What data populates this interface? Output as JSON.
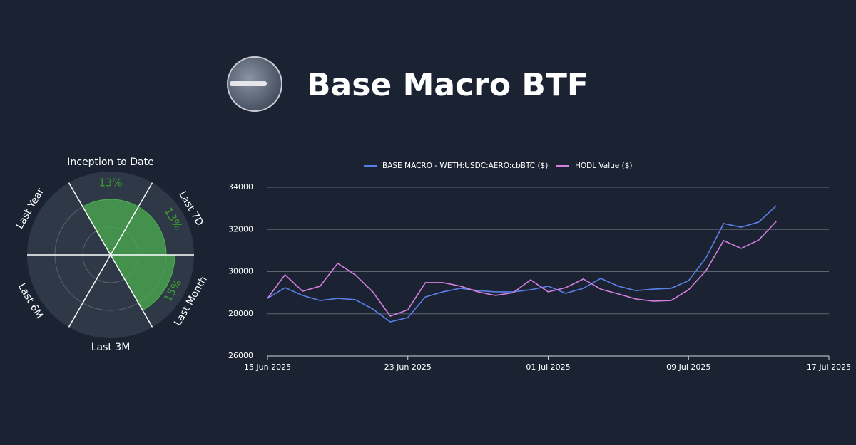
{
  "header": {
    "title": "Base Macro BTF"
  },
  "chart_data": [
    {
      "type": "polar-bar",
      "categories": [
        "Inception to Date",
        "Last 7D",
        "Last Month",
        "Last 3M",
        "Last 6M",
        "Last Year"
      ],
      "values": [
        13,
        13,
        15,
        null,
        null,
        null
      ],
      "value_labels": [
        "13%",
        "13%",
        "15%",
        null,
        null,
        null
      ],
      "color": "#4caf50",
      "rlim": [
        0,
        19.5
      ]
    },
    {
      "type": "line",
      "legend": "top",
      "x": [
        "2025-06-15",
        "2025-06-16",
        "2025-06-17",
        "2025-06-18",
        "2025-06-19",
        "2025-06-20",
        "2025-06-21",
        "2025-06-22",
        "2025-06-23",
        "2025-06-24",
        "2025-06-25",
        "2025-06-26",
        "2025-06-27",
        "2025-06-28",
        "2025-06-29",
        "2025-06-30",
        "2025-07-01",
        "2025-07-02",
        "2025-07-03",
        "2025-07-04",
        "2025-07-05",
        "2025-07-06",
        "2025-07-07",
        "2025-07-08",
        "2025-07-09",
        "2025-07-10",
        "2025-07-11",
        "2025-07-12",
        "2025-07-13",
        "2025-07-14"
      ],
      "series": [
        {
          "name": "BASE MACRO - WETH:USDC:AERO:cbBTC ($)",
          "color": "#5b7fe8",
          "values": [
            28730,
            29240,
            28870,
            28630,
            28730,
            28670,
            28230,
            27620,
            27820,
            28800,
            29040,
            29210,
            29100,
            29040,
            29040,
            29140,
            29310,
            28970,
            29210,
            29680,
            29310,
            29100,
            29170,
            29210,
            29570,
            30660,
            32280,
            32110,
            32350,
            33120
          ]
        },
        {
          "name": "HODL Value ($)",
          "color": "#d67fe0",
          "values": [
            28730,
            29850,
            29070,
            29310,
            30390,
            29850,
            29040,
            27890,
            28190,
            29480,
            29480,
            29310,
            29040,
            28870,
            29000,
            29610,
            29040,
            29240,
            29650,
            29170,
            28940,
            28700,
            28600,
            28630,
            29140,
            30050,
            31470,
            31100,
            31500,
            32380
          ]
        }
      ],
      "xlim": [
        "2025-06-15",
        "2025-07-17"
      ],
      "xticks": [
        {
          "value": "2025-06-15",
          "label": "15 Jun 2025"
        },
        {
          "value": "2025-06-23",
          "label": "23 Jun 2025"
        },
        {
          "value": "2025-07-01",
          "label": "01 Jul 2025"
        },
        {
          "value": "2025-07-09",
          "label": "09 Jul 2025"
        },
        {
          "value": "2025-07-17",
          "label": "17 Jul 2025"
        }
      ],
      "ylim": [
        26000,
        34000
      ],
      "yticks": [
        26000,
        28000,
        30000,
        32000,
        34000
      ],
      "grid": true
    }
  ]
}
